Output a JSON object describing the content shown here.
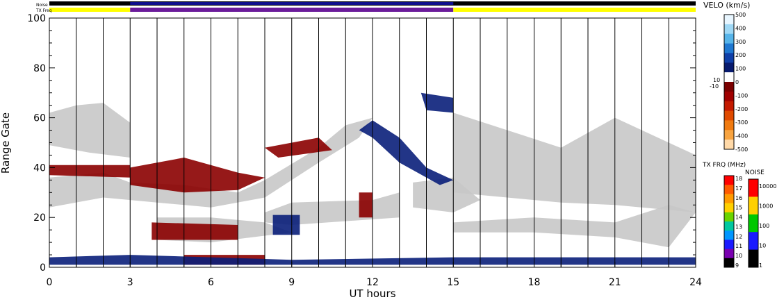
{
  "chart_data": {
    "type": "heatmap",
    "title": "",
    "xlabel": "UT hours",
    "ylabel": "Range Gate",
    "xlim": [
      0,
      24
    ],
    "ylim": [
      0,
      100
    ],
    "x_ticks": [
      0,
      3,
      6,
      9,
      12,
      15,
      18,
      21,
      24
    ],
    "y_ticks": [
      0,
      20,
      40,
      60,
      80,
      100
    ],
    "status_bars": {
      "noise_label": "Noise",
      "txfreq_label": "TX Freq",
      "txfreq_segments": [
        {
          "start": 0,
          "end": 3,
          "color": "#ffff00"
        },
        {
          "start": 3,
          "end": 15,
          "color": "#6a1b9a"
        },
        {
          "start": 15,
          "end": 24,
          "color": "#ffff00"
        }
      ]
    },
    "velocity_scale": {
      "title": "VELO (km/s)",
      "ticks": [
        "500",
        "400",
        "300",
        "200",
        "100",
        "0",
        "-100",
        "-200",
        "-300",
        "-400",
        "-500"
      ],
      "near_zero_labels": [
        "10",
        "-10"
      ],
      "colors": [
        "#e8f6ff",
        "#9fd8f5",
        "#56b4e9",
        "#1f78d1",
        "#0f3fa8",
        "#071a6e",
        "#ffffff",
        "#7a0000",
        "#a00000",
        "#c41a00",
        "#e04a00",
        "#f07a10",
        "#f8a440",
        "#ffd9a8"
      ]
    },
    "txfreq_scale": {
      "title": "TX FRQ (MHz)",
      "ticks": [
        "18",
        "17",
        "16",
        "15",
        "14",
        "13",
        "12",
        "11",
        "10",
        "9"
      ],
      "colors": [
        "#ff0000",
        "#ff5a00",
        "#ff9a00",
        "#ffd000",
        "#6ad400",
        "#00c8a0",
        "#0096ff",
        "#1a1aff",
        "#7a00b0",
        "#000000"
      ]
    },
    "noise_scale": {
      "title": "NOISE",
      "ticks": [
        "10000",
        "1000",
        "100",
        "10",
        "1"
      ],
      "colors": [
        "#ff0000",
        "#ffd000",
        "#00c800",
        "#1a1aff",
        "#000000"
      ]
    },
    "regions": [
      {
        "name": "ground scatter",
        "color": "#c8c8c8",
        "points": [
          [
            0,
            62
          ],
          [
            1,
            65
          ],
          [
            2,
            66
          ],
          [
            3,
            58
          ],
          [
            3,
            44
          ],
          [
            1.5,
            46
          ],
          [
            0,
            49
          ]
        ]
      },
      {
        "name": "ground scatter",
        "color": "#c8c8c8",
        "points": [
          [
            0,
            36
          ],
          [
            2,
            38
          ],
          [
            3,
            34
          ],
          [
            5,
            33
          ],
          [
            7,
            30
          ],
          [
            8,
            35
          ],
          [
            10,
            48
          ],
          [
            11,
            57
          ],
          [
            12,
            60
          ],
          [
            11.5,
            52
          ],
          [
            10,
            42
          ],
          [
            8,
            28
          ],
          [
            6,
            24
          ],
          [
            4,
            26
          ],
          [
            2,
            28
          ],
          [
            0,
            24
          ]
        ]
      },
      {
        "name": "ground scatter",
        "color": "#c8c8c8",
        "points": [
          [
            8,
            22
          ],
          [
            9,
            26
          ],
          [
            12,
            27
          ],
          [
            13,
            30
          ],
          [
            13,
            20
          ],
          [
            9,
            17
          ],
          [
            8,
            18
          ]
        ]
      },
      {
        "name": "ground scatter",
        "color": "#c8c8c8",
        "points": [
          [
            15,
            62
          ],
          [
            17,
            55
          ],
          [
            19,
            48
          ],
          [
            21,
            60
          ],
          [
            23,
            50
          ],
          [
            24,
            45
          ],
          [
            24,
            22
          ],
          [
            21,
            25
          ],
          [
            19,
            26
          ],
          [
            17,
            28
          ],
          [
            15,
            30
          ]
        ]
      },
      {
        "name": "ground scatter",
        "color": "#c8c8c8",
        "points": [
          [
            13.5,
            34
          ],
          [
            15,
            36
          ],
          [
            16,
            27
          ],
          [
            15,
            22
          ],
          [
            13.5,
            24
          ]
        ]
      },
      {
        "name": "ground scatter",
        "color": "#c8c8c8",
        "points": [
          [
            15,
            18
          ],
          [
            18,
            20
          ],
          [
            21,
            18
          ],
          [
            23,
            25
          ],
          [
            24,
            22
          ],
          [
            23,
            8
          ],
          [
            21,
            12
          ],
          [
            18,
            14
          ],
          [
            15,
            14
          ]
        ]
      },
      {
        "name": "ground scatter",
        "color": "#c8c8c8",
        "points": [
          [
            4,
            20
          ],
          [
            6,
            20
          ],
          [
            8,
            18
          ],
          [
            9,
            14
          ],
          [
            6,
            10
          ],
          [
            4,
            11
          ]
        ]
      },
      {
        "name": "negative velocity",
        "color": "#8b0000",
        "points": [
          [
            3,
            40
          ],
          [
            5,
            44
          ],
          [
            7,
            38
          ],
          [
            8,
            36
          ],
          [
            7,
            31
          ],
          [
            5,
            30
          ],
          [
            3,
            33
          ]
        ]
      },
      {
        "name": "negative velocity",
        "color": "#8b0000",
        "points": [
          [
            0,
            41
          ],
          [
            3,
            41
          ],
          [
            3,
            36
          ],
          [
            0,
            37
          ]
        ]
      },
      {
        "name": "negative velocity",
        "color": "#8b0000",
        "points": [
          [
            3.8,
            18
          ],
          [
            7,
            17
          ],
          [
            7,
            11
          ],
          [
            3.8,
            11
          ]
        ]
      },
      {
        "name": "negative velocity",
        "color": "#8b0000",
        "points": [
          [
            5,
            5
          ],
          [
            8,
            5
          ],
          [
            8,
            1
          ],
          [
            5,
            1
          ]
        ]
      },
      {
        "name": "negative velocity",
        "color": "#8b0000",
        "points": [
          [
            11.5,
            30
          ],
          [
            12,
            30
          ],
          [
            12,
            20
          ],
          [
            11.5,
            20
          ]
        ]
      },
      {
        "name": "negative velocity",
        "color": "#8b0000",
        "points": [
          [
            8,
            48
          ],
          [
            10,
            52
          ],
          [
            10.5,
            47
          ],
          [
            8.5,
            44
          ]
        ]
      },
      {
        "name": "positive velocity",
        "color": "#0a1f7a",
        "points": [
          [
            8.3,
            21
          ],
          [
            9.3,
            21
          ],
          [
            9.3,
            13
          ],
          [
            8.3,
            13
          ]
        ]
      },
      {
        "name": "positive velocity",
        "color": "#0a1f7a",
        "points": [
          [
            12,
            59
          ],
          [
            13,
            52
          ],
          [
            14,
            40
          ],
          [
            15,
            35
          ],
          [
            14.5,
            33
          ],
          [
            13,
            42
          ],
          [
            12,
            52
          ],
          [
            11.5,
            55
          ]
        ]
      },
      {
        "name": "positive velocity",
        "color": "#0a1f7a",
        "points": [
          [
            13.8,
            70
          ],
          [
            15,
            68
          ],
          [
            15,
            62
          ],
          [
            14,
            63
          ]
        ]
      },
      {
        "name": "positive velocity",
        "color": "#0a1f7a",
        "points": [
          [
            0,
            4
          ],
          [
            3,
            5
          ],
          [
            9,
            3
          ],
          [
            15,
            4
          ],
          [
            24,
            4
          ],
          [
            24,
            1
          ],
          [
            0,
            1
          ]
        ]
      }
    ]
  }
}
